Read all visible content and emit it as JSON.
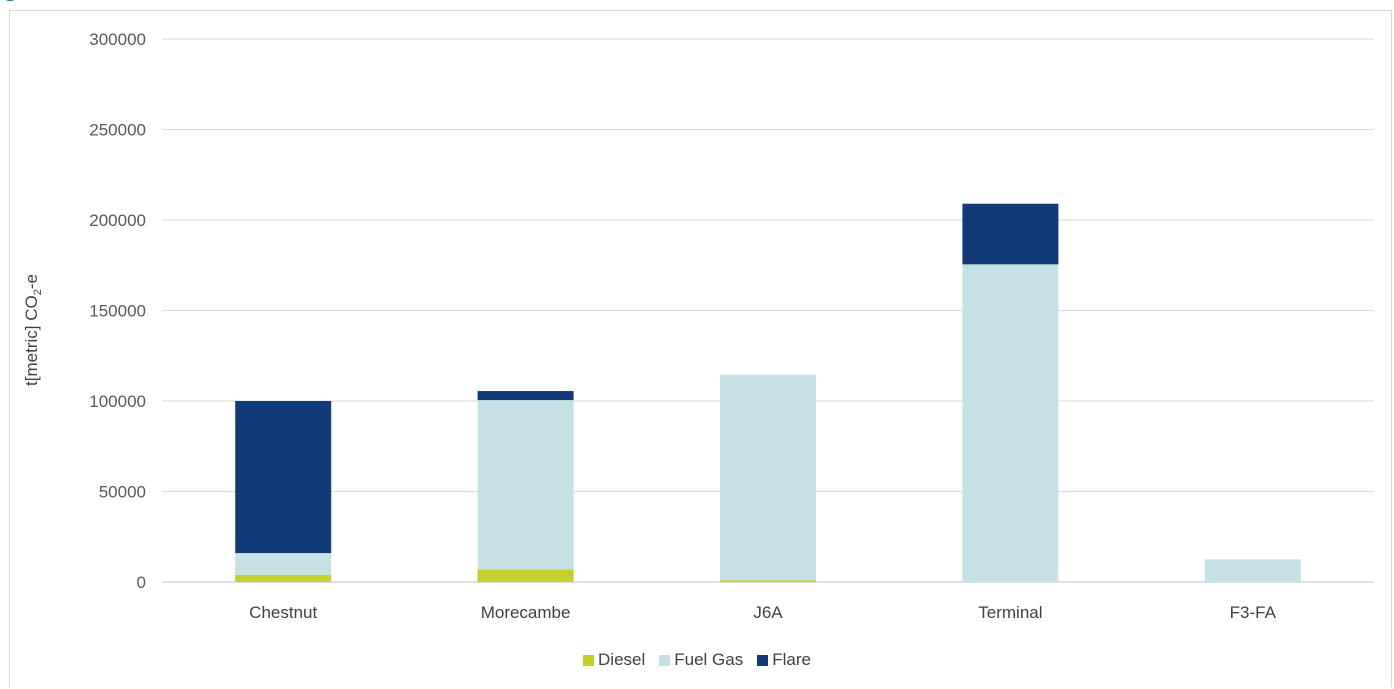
{
  "chart_data": {
    "type": "bar",
    "stacked": true,
    "categories": [
      "Chestnut",
      "Morecambe",
      "J6A",
      "Terminal",
      "F3-FA"
    ],
    "series": [
      {
        "name": "Diesel",
        "color": "#c5cf2b",
        "values": [
          4000,
          7000,
          1000,
          0,
          0
        ]
      },
      {
        "name": "Fuel Gas",
        "color": "#c6e1e5",
        "values": [
          12000,
          93500,
          113500,
          175500,
          12500
        ]
      },
      {
        "name": "Flare",
        "color": "#123a78",
        "values": [
          84000,
          5000,
          0,
          33500,
          0
        ]
      }
    ],
    "ylabel_main": "t[metric] CO",
    "ylabel_sub": "2",
    "ylabel_tail": "-e",
    "ylim": [
      0,
      300000
    ],
    "yticks": [
      0,
      50000,
      100000,
      150000,
      200000,
      250000,
      300000
    ],
    "grid": true,
    "legend_position": "bottom"
  }
}
